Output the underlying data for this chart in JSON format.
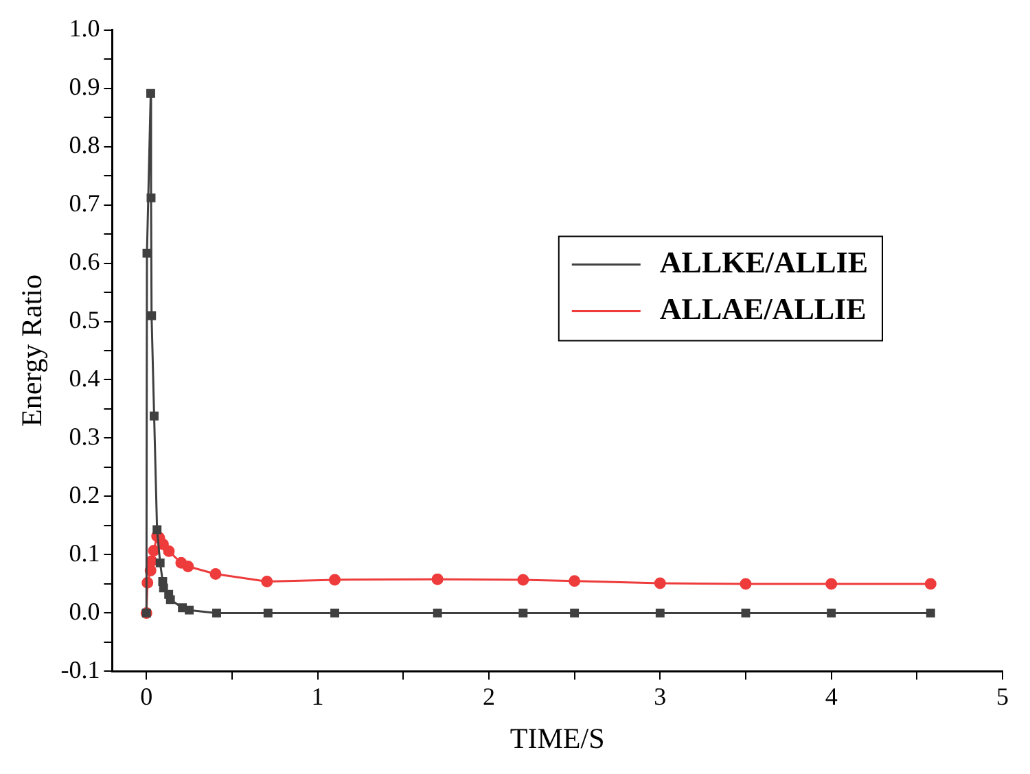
{
  "chart_data": {
    "type": "line",
    "xlabel": "TIME/S",
    "ylabel": "Energy Ratio",
    "xlim": [
      -0.2,
      5
    ],
    "ylim": [
      -0.1,
      1.0
    ],
    "xticks": [
      0,
      {
        "value": 0.5,
        "label": null
      },
      1,
      {
        "value": 1.5,
        "label": null
      },
      2,
      {
        "value": 2.5,
        "label": null
      },
      3,
      {
        "value": 3.5,
        "label": null
      },
      4,
      {
        "value": 4.5,
        "label": null
      },
      5
    ],
    "yticks": [
      {
        "value": -0.1,
        "label": "-0.1"
      },
      {
        "value": -0.05,
        "label": null
      },
      {
        "value": 0,
        "label": "0.0"
      },
      {
        "value": 0.05,
        "label": null
      },
      {
        "value": 0.1,
        "label": "0.1"
      },
      {
        "value": 0.15,
        "label": null
      },
      {
        "value": 0.2,
        "label": "0.2"
      },
      {
        "value": 0.25,
        "label": null
      },
      {
        "value": 0.3,
        "label": "0.3"
      },
      {
        "value": 0.35,
        "label": null
      },
      {
        "value": 0.4,
        "label": "0.4"
      },
      {
        "value": 0.45,
        "label": null
      },
      {
        "value": 0.5,
        "label": "0.5"
      },
      {
        "value": 0.55,
        "label": null
      },
      {
        "value": 0.6,
        "label": "0.6"
      },
      {
        "value": 0.65,
        "label": null
      },
      {
        "value": 0.7,
        "label": "0.7"
      },
      {
        "value": 0.75,
        "label": null
      },
      {
        "value": 0.8,
        "label": "0.8"
      },
      {
        "value": 0.85,
        "label": null
      },
      {
        "value": 0.9,
        "label": "0.9"
      },
      {
        "value": 0.95,
        "label": null
      },
      {
        "value": 1.0,
        "label": "1.0"
      }
    ],
    "grid": false,
    "legend": "top right",
    "line_style": "solid",
    "series": [
      {
        "name": "ALLKE/ALLIE",
        "color": "#404040",
        "marker": "square",
        "x": [
          0,
          0.003,
          0.025,
          0.027,
          0.03,
          0.045,
          0.062,
          0.08,
          0.095,
          0.1,
          0.13,
          0.14,
          0.21,
          0.25,
          0.41,
          0.71,
          1.1,
          1.7,
          2.2,
          2.5,
          3,
          3.5,
          4,
          4.58
        ],
        "values": [
          0,
          0.617,
          0.891,
          0.712,
          0.51,
          0.338,
          0.143,
          0.086,
          0.054,
          0.043,
          0.032,
          0.023,
          0.009,
          0.005,
          0,
          0,
          0,
          0,
          0,
          0,
          0,
          0,
          0,
          0
        ]
      },
      {
        "name": "ALLAE/ALLIE",
        "color": "#ee3b3b",
        "marker": "circle",
        "x": [
          0,
          0.006,
          0.024,
          0.03,
          0.043,
          0.062,
          0.075,
          0.097,
          0.131,
          0.203,
          0.243,
          0.404,
          0.704,
          1.1,
          1.7,
          2.2,
          2.5,
          3,
          3.5,
          4,
          4.58
        ],
        "values": [
          0,
          0.052,
          0.073,
          0.089,
          0.107,
          0.132,
          0.129,
          0.118,
          0.106,
          0.086,
          0.08,
          0.067,
          0.054,
          0.057,
          0.058,
          0.057,
          0.055,
          0.051,
          0.05,
          0.05,
          0.05
        ]
      }
    ]
  }
}
